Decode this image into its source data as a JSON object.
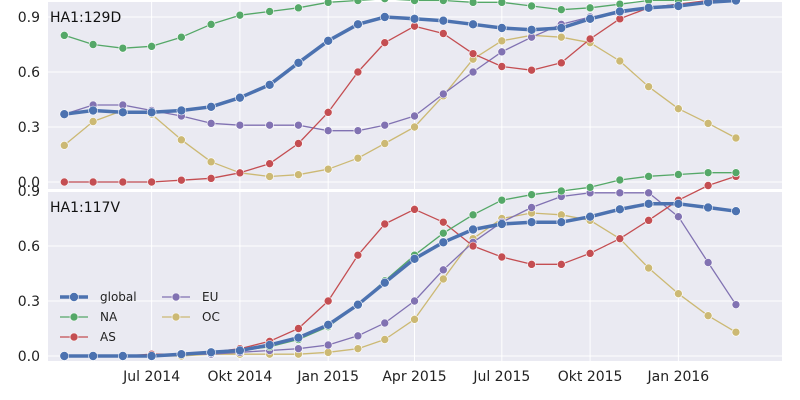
{
  "chart_data": [
    {
      "type": "line",
      "title": "HA1:129D",
      "xlabel": "",
      "ylabel": "",
      "ylim": [
        0,
        1.0
      ],
      "yticks": [
        "0.0",
        "0.3",
        "0.6",
        "0.9"
      ],
      "grid": true,
      "x": [
        "2014-04-01",
        "2014-05-01",
        "2014-06-01",
        "2014-07-01",
        "2014-08-01",
        "2014-09-01",
        "2014-10-01",
        "2014-11-01",
        "2014-12-01",
        "2015-01-01",
        "2015-02-01",
        "2015-03-01",
        "2015-04-01",
        "2015-05-01",
        "2015-06-01",
        "2015-07-01",
        "2015-08-01",
        "2015-09-01",
        "2015-10-01",
        "2015-11-01",
        "2015-12-01",
        "2016-01-01",
        "2016-02-01",
        "2016-03-01"
      ],
      "series": [
        {
          "name": "global",
          "color": "#4c72b0",
          "values": [
            0.37,
            0.39,
            0.38,
            0.38,
            0.39,
            0.41,
            0.46,
            0.53,
            0.65,
            0.77,
            0.86,
            0.9,
            0.89,
            0.88,
            0.86,
            0.84,
            0.83,
            0.84,
            0.89,
            0.93,
            0.95,
            0.96,
            0.98,
            0.99
          ]
        },
        {
          "name": "NA",
          "color": "#55a868",
          "values": [
            0.8,
            0.75,
            0.73,
            0.74,
            0.79,
            0.86,
            0.91,
            0.93,
            0.95,
            0.98,
            0.99,
            1.0,
            0.99,
            0.99,
            0.98,
            0.98,
            0.96,
            0.94,
            0.95,
            0.97,
            0.99,
            0.99,
            1.0,
            1.0
          ]
        },
        {
          "name": "AS",
          "color": "#c44e52",
          "values": [
            0.0,
            0.0,
            0.0,
            0.0,
            0.01,
            0.02,
            0.05,
            0.1,
            0.21,
            0.38,
            0.6,
            0.76,
            0.85,
            0.81,
            0.7,
            0.63,
            0.61,
            0.65,
            0.78,
            0.89,
            0.95,
            0.97,
            0.99,
            0.99
          ]
        },
        {
          "name": "EU",
          "color": "#8172b2",
          "values": [
            0.37,
            0.42,
            0.42,
            0.39,
            0.36,
            0.32,
            0.31,
            0.31,
            0.31,
            0.28,
            0.28,
            0.31,
            0.36,
            0.48,
            0.6,
            0.71,
            0.79,
            0.86,
            0.9,
            0.92,
            0.95,
            0.97,
            0.98,
            0.99
          ]
        },
        {
          "name": "OC",
          "color": "#ccb974",
          "values": [
            0.2,
            0.33,
            0.39,
            0.37,
            0.23,
            0.11,
            0.05,
            0.03,
            0.04,
            0.07,
            0.13,
            0.21,
            0.3,
            0.47,
            0.67,
            0.77,
            0.8,
            0.79,
            0.76,
            0.66,
            0.52,
            0.4,
            0.32,
            0.24
          ]
        }
      ]
    },
    {
      "type": "line",
      "title": "HA1:117V",
      "xlabel": "",
      "ylabel": "",
      "ylim": [
        0,
        1.0
      ],
      "yticks": [
        "0.0",
        "0.3",
        "0.6",
        "0.9"
      ],
      "xticks": [
        "Jul 2014",
        "Okt 2014",
        "Jan 2015",
        "Apr 2015",
        "Jul 2015",
        "Okt 2015",
        "Jan 2016"
      ],
      "grid": true,
      "legend": {
        "placement": "lower-left",
        "columns": 2,
        "order": [
          "global",
          "NA",
          "AS",
          "EU",
          "OC"
        ]
      },
      "x": [
        "2014-04-01",
        "2014-05-01",
        "2014-06-01",
        "2014-07-01",
        "2014-08-01",
        "2014-09-01",
        "2014-10-01",
        "2014-11-01",
        "2014-12-01",
        "2015-01-01",
        "2015-02-01",
        "2015-03-01",
        "2015-04-01",
        "2015-05-01",
        "2015-06-01",
        "2015-07-01",
        "2015-08-01",
        "2015-09-01",
        "2015-10-01",
        "2015-11-01",
        "2015-12-01",
        "2016-01-01",
        "2016-02-01",
        "2016-03-01"
      ],
      "series": [
        {
          "name": "global",
          "color": "#4c72b0",
          "values": [
            0.0,
            0.0,
            0.0,
            0.0,
            0.01,
            0.02,
            0.03,
            0.06,
            0.1,
            0.17,
            0.28,
            0.4,
            0.53,
            0.62,
            0.69,
            0.72,
            0.73,
            0.73,
            0.76,
            0.8,
            0.83,
            0.83,
            0.81,
            0.79
          ]
        },
        {
          "name": "NA",
          "color": "#55a868",
          "values": [
            0.0,
            0.0,
            0.0,
            0.0,
            0.01,
            0.02,
            0.03,
            0.05,
            0.09,
            0.16,
            0.28,
            0.41,
            0.55,
            0.67,
            0.77,
            0.85,
            0.88,
            0.9,
            0.92,
            0.96,
            0.98,
            0.99,
            1.0,
            1.0
          ]
        },
        {
          "name": "AS",
          "color": "#c44e52",
          "values": [
            0.0,
            0.0,
            0.0,
            0.01,
            0.01,
            0.02,
            0.04,
            0.08,
            0.15,
            0.3,
            0.55,
            0.72,
            0.8,
            0.73,
            0.6,
            0.54,
            0.5,
            0.5,
            0.56,
            0.64,
            0.74,
            0.85,
            0.93,
            0.98
          ]
        },
        {
          "name": "EU",
          "color": "#8172b2",
          "values": [
            0.0,
            0.0,
            0.0,
            0.0,
            0.01,
            0.01,
            0.02,
            0.03,
            0.04,
            0.06,
            0.11,
            0.18,
            0.3,
            0.47,
            0.62,
            0.73,
            0.81,
            0.87,
            0.89,
            0.89,
            0.89,
            0.76,
            0.51,
            0.28
          ]
        },
        {
          "name": "OC",
          "color": "#ccb974",
          "values": [
            0.0,
            0.0,
            0.0,
            0.0,
            0.0,
            0.01,
            0.01,
            0.01,
            0.01,
            0.02,
            0.04,
            0.09,
            0.2,
            0.42,
            0.64,
            0.75,
            0.78,
            0.77,
            0.74,
            0.64,
            0.48,
            0.34,
            0.22,
            0.13
          ]
        }
      ]
    }
  ],
  "colors": {
    "panel_bg": "#eaeaf2",
    "grid": "#ffffff"
  }
}
